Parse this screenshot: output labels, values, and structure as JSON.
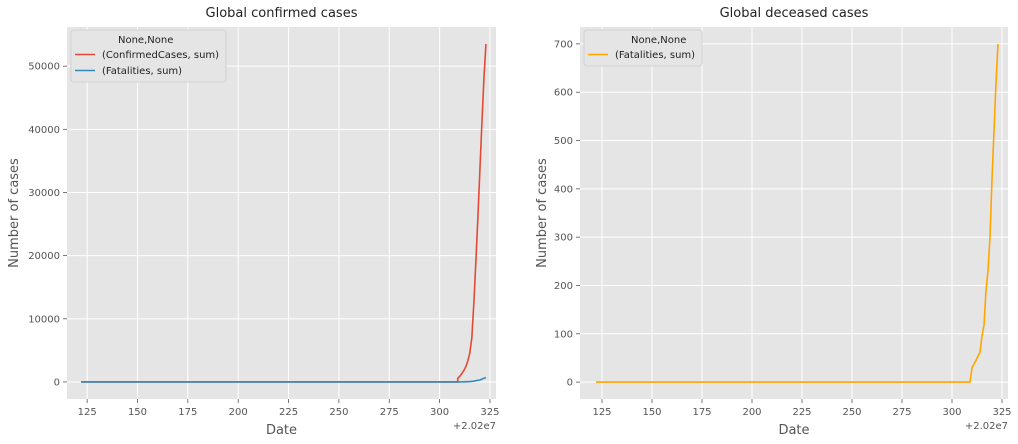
{
  "chart_data": [
    {
      "type": "line",
      "title": "Global confirmed cases",
      "xlabel": "Date",
      "ylabel": "Number of cases",
      "x_offset_label": "+2.02e7",
      "xlim": [
        115,
        328
      ],
      "ylim": [
        -2700,
        56200
      ],
      "xticks": [
        125,
        150,
        175,
        200,
        225,
        250,
        275,
        300,
        325
      ],
      "yticks": [
        0,
        10000,
        20000,
        30000,
        40000,
        50000
      ],
      "grid": true,
      "legend": {
        "title": "None,None",
        "position": "top-left",
        "entries": [
          "(ConfirmedCases, sum)",
          "(Fatalities, sum)"
        ]
      },
      "series": [
        {
          "name": "(ConfirmedCases, sum)",
          "color": "#e24a33",
          "points": [
            [
              122,
              0
            ],
            [
              225,
              0
            ],
            [
              309,
              0
            ],
            [
              309,
              550
            ],
            [
              310,
              900
            ],
            [
              311,
              1300
            ],
            [
              312,
              1800
            ],
            [
              313,
              2400
            ],
            [
              314,
              3300
            ],
            [
              315,
              4600
            ],
            [
              316,
              7000
            ],
            [
              317,
              12500
            ],
            [
              318,
              19000
            ],
            [
              319,
              26000
            ],
            [
              320,
              33500
            ],
            [
              321,
              41000
            ],
            [
              322,
              48000
            ],
            [
              323,
              53500
            ]
          ]
        },
        {
          "name": "(Fatalities, sum)",
          "color": "#348abd",
          "points": [
            [
              122,
              0
            ],
            [
              225,
              0
            ],
            [
              309,
              0
            ],
            [
              312,
              18
            ],
            [
              315,
              60
            ],
            [
              317,
              120
            ],
            [
              318,
              200
            ],
            [
              320,
              310
            ],
            [
              321,
              450
            ],
            [
              323,
              700
            ]
          ]
        }
      ]
    },
    {
      "type": "line",
      "title": "Global deceased cases",
      "xlabel": "Date",
      "ylabel": "Number of cases",
      "x_offset_label": "+2.02e7",
      "xlim": [
        114,
        328
      ],
      "ylim": [
        -35,
        735
      ],
      "xticks": [
        125,
        150,
        175,
        200,
        225,
        250,
        275,
        300,
        325
      ],
      "yticks": [
        0,
        100,
        200,
        300,
        400,
        500,
        600,
        700
      ],
      "grid": true,
      "legend": {
        "title": "None,None",
        "position": "top-left",
        "entries": [
          "(Fatalities, sum)"
        ]
      },
      "series": [
        {
          "name": "(Fatalities, sum)",
          "color": "#ffa500",
          "points": [
            [
              122,
              0
            ],
            [
              309,
              0
            ],
            [
              310,
              30
            ],
            [
              312,
              45
            ],
            [
              314,
              62
            ],
            [
              315,
              95
            ],
            [
              316,
              118
            ],
            [
              317,
              190
            ],
            [
              318,
              230
            ],
            [
              319,
              300
            ],
            [
              320,
              420
            ],
            [
              321,
              520
            ],
            [
              322,
              620
            ],
            [
              323,
              700
            ]
          ]
        }
      ]
    }
  ]
}
